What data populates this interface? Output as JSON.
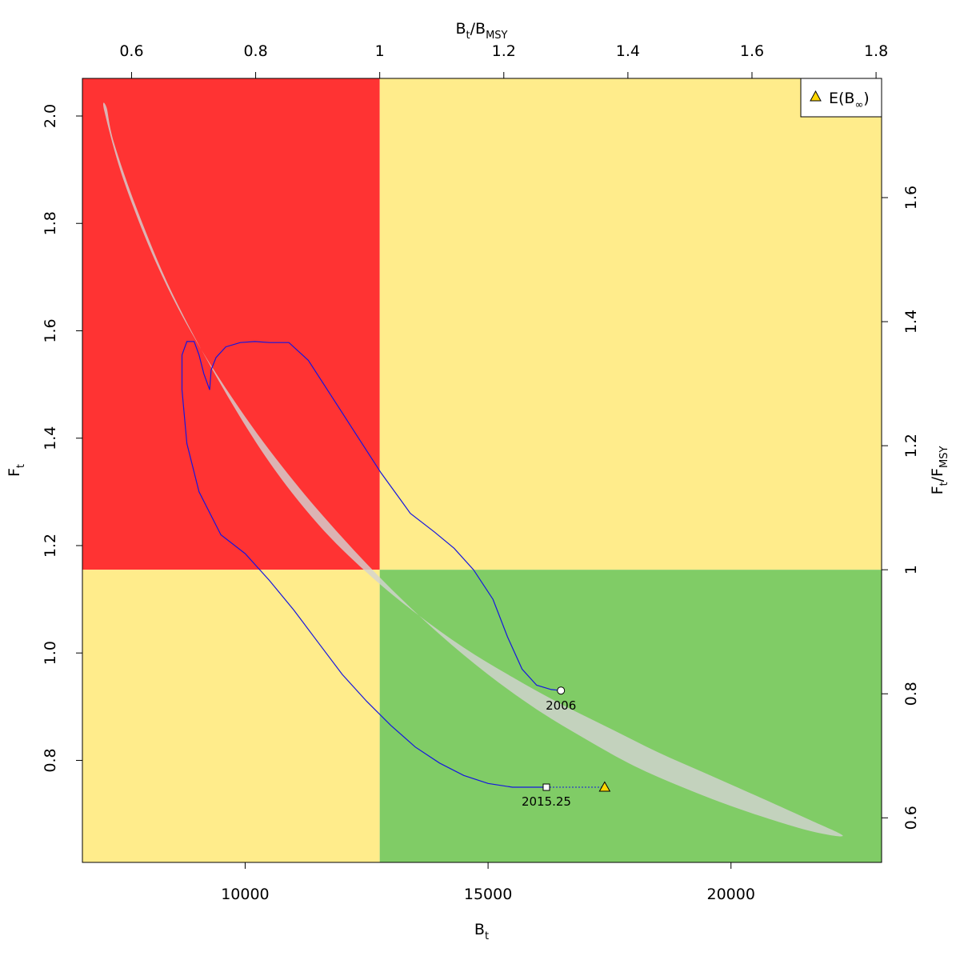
{
  "chart_data": {
    "type": "scatter",
    "title": "",
    "x_bottom": {
      "label_main": "B",
      "label_sub": "t",
      "lim": [
        6650,
        23100
      ],
      "ticks": [
        10000,
        15000,
        20000
      ],
      "tick_labels": [
        "10000",
        "15000",
        "20000"
      ]
    },
    "x_top": {
      "label_b": "B",
      "label_t": "t",
      "label_slash": "/",
      "label_b2": "B",
      "label_msy": "MSY",
      "ticks": [
        0.6,
        0.8,
        1.0,
        1.2,
        1.4,
        1.6,
        1.8
      ],
      "tick_labels": [
        "0.6",
        "0.8",
        "1",
        "1.2",
        "1.4",
        "1.6",
        "1.8"
      ]
    },
    "y_left": {
      "label_main": "F",
      "label_sub": "t",
      "lim": [
        0.61,
        2.07
      ],
      "ticks": [
        0.8,
        1.0,
        1.2,
        1.4,
        1.6,
        1.8,
        2.0
      ],
      "tick_labels": [
        "0.8",
        "1.0",
        "1.2",
        "1.4",
        "1.6",
        "1.8",
        "2.0"
      ]
    },
    "y_right": {
      "label_f": "F",
      "label_t": "t",
      "label_slash": "/",
      "label_f2": "F",
      "label_msy": "MSY",
      "ticks": [
        0.6,
        0.8,
        1.0,
        1.2,
        1.4,
        1.6
      ],
      "tick_labels": [
        "0.6",
        "0.8",
        "1",
        "1.2",
        "1.4",
        "1.6"
      ]
    },
    "reference": {
      "Bmsy": 12770,
      "Fmsy": 1.155
    },
    "colors": {
      "red_zone": "#ff3333",
      "yellow_zone": "#ffec8b",
      "green_zone": "#80cc66",
      "ellipse": "#d3d3d3",
      "trajectory": "#1515e0",
      "triangle": "#ffd700"
    },
    "ellipse_outline": [
      [
        7100,
        2.01
      ],
      [
        7500,
        1.88
      ],
      [
        8200,
        1.72
      ],
      [
        9000,
        1.58
      ],
      [
        10000,
        1.44
      ],
      [
        11000,
        1.32
      ],
      [
        12000,
        1.215
      ],
      [
        13000,
        1.12
      ],
      [
        14000,
        1.035
      ],
      [
        15000,
        0.96
      ],
      [
        16000,
        0.895
      ],
      [
        17000,
        0.84
      ],
      [
        18000,
        0.79
      ],
      [
        19000,
        0.75
      ],
      [
        20000,
        0.715
      ],
      [
        21000,
        0.685
      ],
      [
        21800,
        0.665
      ],
      [
        22300,
        0.66
      ],
      [
        21600,
        0.69
      ],
      [
        20500,
        0.735
      ],
      [
        19500,
        0.775
      ],
      [
        18500,
        0.815
      ],
      [
        17500,
        0.86
      ],
      [
        16500,
        0.905
      ],
      [
        15500,
        0.955
      ],
      [
        14500,
        1.01
      ],
      [
        13500,
        1.075
      ],
      [
        12500,
        1.15
      ],
      [
        11500,
        1.24
      ],
      [
        10500,
        1.355
      ],
      [
        9500,
        1.5
      ],
      [
        8500,
        1.67
      ],
      [
        7800,
        1.82
      ],
      [
        7300,
        1.95
      ],
      [
        7150,
        2.015
      ]
    ],
    "trajectory": [
      [
        16500,
        0.93
      ],
      [
        16300,
        0.932
      ],
      [
        16000,
        0.94
      ],
      [
        15700,
        0.97
      ],
      [
        15400,
        1.03
      ],
      [
        15100,
        1.1
      ],
      [
        14700,
        1.155
      ],
      [
        14300,
        1.195
      ],
      [
        13900,
        1.225
      ],
      [
        13400,
        1.26
      ],
      [
        13200,
        1.285
      ],
      [
        12800,
        1.335
      ],
      [
        12300,
        1.405
      ],
      [
        11800,
        1.475
      ],
      [
        11300,
        1.545
      ],
      [
        10900,
        1.578
      ],
      [
        10500,
        1.578
      ],
      [
        10200,
        1.58
      ],
      [
        9900,
        1.578
      ],
      [
        9600,
        1.57
      ],
      [
        9400,
        1.55
      ],
      [
        9300,
        1.527
      ],
      [
        9270,
        1.49
      ],
      [
        9150,
        1.52
      ],
      [
        9050,
        1.555
      ],
      [
        8950,
        1.58
      ],
      [
        8800,
        1.58
      ],
      [
        8700,
        1.555
      ],
      [
        8700,
        1.49
      ],
      [
        8800,
        1.39
      ],
      [
        9050,
        1.3
      ],
      [
        9500,
        1.22
      ],
      [
        10000,
        1.185
      ],
      [
        10500,
        1.135
      ],
      [
        11000,
        1.08
      ],
      [
        11500,
        1.02
      ],
      [
        12000,
        0.96
      ],
      [
        12500,
        0.91
      ],
      [
        13000,
        0.865
      ],
      [
        13500,
        0.825
      ],
      [
        14000,
        0.795
      ],
      [
        14500,
        0.772
      ],
      [
        15000,
        0.757
      ],
      [
        15500,
        0.75
      ],
      [
        16200,
        0.75
      ]
    ],
    "start": {
      "x": 16500,
      "y": 0.93,
      "label": "2006"
    },
    "end": {
      "x": 16200,
      "y": 0.75,
      "label": "2015.25"
    },
    "equilibrium": {
      "x": 17400,
      "y": 0.75
    },
    "legend": {
      "position": "top-right",
      "label_main": "E(B",
      "label_sub": "∞",
      "label_close": ")"
    }
  }
}
